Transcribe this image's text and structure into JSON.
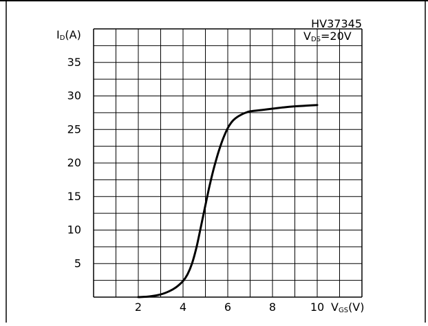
{
  "colors": {
    "background": "#ffffff",
    "grid": "#000000",
    "curve": "#000000",
    "text": "#000000"
  },
  "chart_data": {
    "type": "line",
    "title": "",
    "annotations": {
      "part_number": "HV37345",
      "condition": {
        "symbol": "V",
        "subscript": "DS",
        "rest": "=20V"
      }
    },
    "ylabel": {
      "symbol": "I",
      "subscript": "D",
      "rest": "(A)"
    },
    "xlabel": {
      "symbol": "V",
      "subscript": "GS",
      "rest": "(V)"
    },
    "xlim": [
      0,
      12
    ],
    "ylim": [
      0,
      40
    ],
    "xticks": [
      {
        "value": 2,
        "label": "2"
      },
      {
        "value": 4,
        "label": "4"
      },
      {
        "value": 6,
        "label": "6"
      },
      {
        "value": 8,
        "label": "8"
      },
      {
        "value": 10,
        "label": "10"
      }
    ],
    "yticks": [
      {
        "value": 5,
        "label": "5"
      },
      {
        "value": 10,
        "label": "10"
      },
      {
        "value": 15,
        "label": "15"
      },
      {
        "value": 20,
        "label": "20"
      },
      {
        "value": 25,
        "label": "25"
      },
      {
        "value": 30,
        "label": "30"
      },
      {
        "value": 35,
        "label": "35"
      }
    ],
    "grid": true,
    "grid_x_step": 1,
    "grid_y_step": 2.5,
    "series": [
      {
        "x": [
          2.0,
          2.5,
          3.0,
          3.4,
          3.7,
          4.0,
          4.2,
          4.4,
          4.6,
          4.8,
          5.0,
          5.2,
          5.4,
          5.6,
          5.8,
          6.0,
          6.2,
          6.4,
          6.6,
          6.8,
          7.0,
          7.5,
          8.0,
          8.5,
          9.0,
          9.5,
          10.0
        ],
        "y": [
          0.0,
          0.1,
          0.4,
          0.9,
          1.5,
          2.4,
          3.4,
          5.0,
          7.4,
          10.5,
          13.7,
          16.8,
          19.5,
          21.8,
          23.7,
          25.2,
          26.2,
          26.8,
          27.2,
          27.5,
          27.7,
          27.9,
          28.1,
          28.3,
          28.45,
          28.55,
          28.65
        ]
      }
    ]
  }
}
